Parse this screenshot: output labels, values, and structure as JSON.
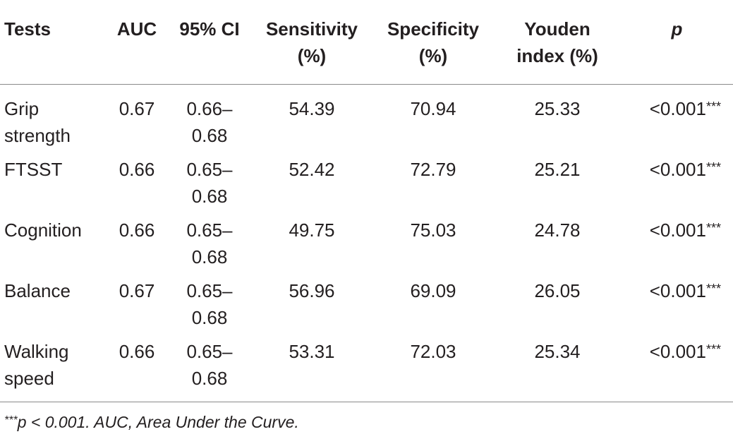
{
  "table": {
    "headers": [
      [
        "Tests"
      ],
      [
        "AUC"
      ],
      [
        "95% CI"
      ],
      [
        "Sensitivity",
        "(%)"
      ],
      [
        "Specificity",
        "(%)"
      ],
      [
        "Youden",
        "index (%)"
      ],
      [
        "p"
      ]
    ],
    "rows": [
      {
        "test": [
          "Grip",
          "strength"
        ],
        "auc": "0.67",
        "ci": [
          "0.66–",
          "0.68"
        ],
        "sensitivity": "54.39",
        "specificity": "70.94",
        "youden": "25.33",
        "p": "<0.001",
        "sig": "***"
      },
      {
        "test": [
          "FTSST"
        ],
        "auc": "0.66",
        "ci": [
          "0.65–",
          "0.68"
        ],
        "sensitivity": "52.42",
        "specificity": "72.79",
        "youden": "25.21",
        "p": "<0.001",
        "sig": "***"
      },
      {
        "test": [
          "Cognition"
        ],
        "auc": "0.66",
        "ci": [
          "0.65–",
          "0.68"
        ],
        "sensitivity": "49.75",
        "specificity": "75.03",
        "youden": "24.78",
        "p": "<0.001",
        "sig": "***"
      },
      {
        "test": [
          "Balance"
        ],
        "auc": "0.67",
        "ci": [
          "0.65–",
          "0.68"
        ],
        "sensitivity": "56.96",
        "specificity": "69.09",
        "youden": "26.05",
        "p": "<0.001",
        "sig": "***"
      },
      {
        "test": [
          "Walking",
          "speed"
        ],
        "auc": "0.66",
        "ci": [
          "0.65–",
          "0.68"
        ],
        "sensitivity": "53.31",
        "specificity": "72.03",
        "youden": "25.34",
        "p": "<0.001",
        "sig": "***"
      }
    ]
  },
  "footnote": {
    "marker": "***",
    "text": "p < 0.001. AUC, Area Under the Curve."
  },
  "colors": {
    "text": "#231f20",
    "rule": "#8a8a8a"
  }
}
